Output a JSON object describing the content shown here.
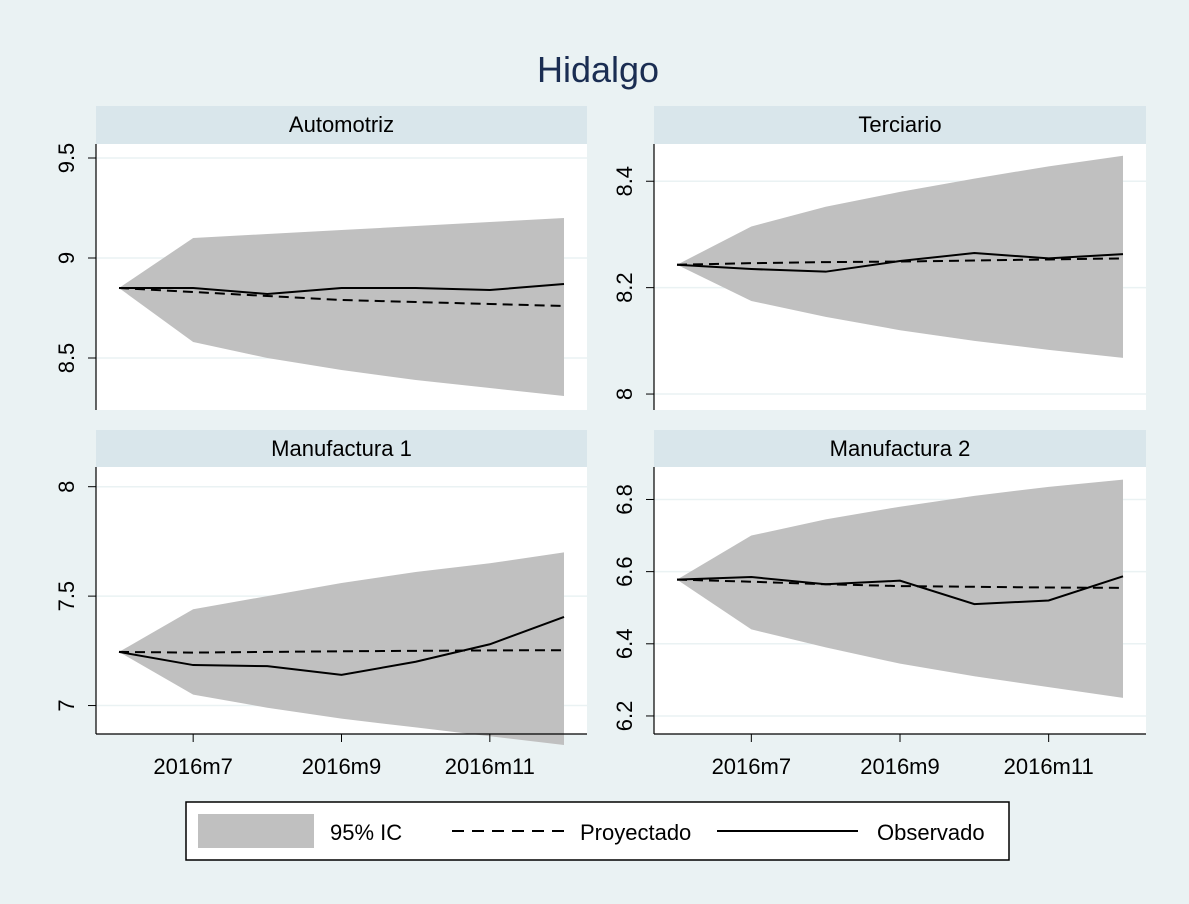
{
  "title": "Hidalgo",
  "colors": {
    "background": "#eaf2f3",
    "plot_bg": "#ffffff",
    "strip": "#d9e6eb",
    "ci_fill": "#c0c0c0",
    "line": "#000000",
    "title": "#1a2d52",
    "grid": "#eaf2f3",
    "legend_bg": "#ffffff"
  },
  "legend": {
    "placement": "bottom",
    "items": [
      {
        "key": "ci",
        "label": "95% IC"
      },
      {
        "key": "proj",
        "label": "Proyectado"
      },
      {
        "key": "obs",
        "label": "Observado"
      }
    ]
  },
  "chart_data": [
    {
      "type": "line",
      "title": "Automotriz",
      "x": [
        "2016m6",
        "2016m7",
        "2016m8",
        "2016m9",
        "2016m10",
        "2016m11",
        "2016m12"
      ],
      "x_ticks": [
        "2016m7",
        "2016m9",
        "2016m11"
      ],
      "y_ticks": [
        "8.5",
        "9",
        "9.5"
      ],
      "ylim": [
        8.24,
        9.57
      ],
      "grid": true,
      "series": [
        {
          "name": "Observado",
          "style": "solid",
          "values": [
            8.85,
            8.85,
            8.82,
            8.85,
            8.85,
            8.84,
            8.87
          ]
        },
        {
          "name": "Proyectado",
          "style": "dash",
          "values": [
            8.85,
            8.83,
            8.81,
            8.79,
            8.78,
            8.77,
            8.76
          ]
        }
      ],
      "ci": {
        "name": "95% IC",
        "lower": [
          8.85,
          8.58,
          8.5,
          8.44,
          8.39,
          8.35,
          8.31
        ],
        "upper": [
          8.85,
          9.1,
          9.12,
          9.14,
          9.16,
          9.18,
          9.2
        ]
      }
    },
    {
      "type": "line",
      "title": "Terciario",
      "x": [
        "2016m6",
        "2016m7",
        "2016m8",
        "2016m9",
        "2016m10",
        "2016m11",
        "2016m12"
      ],
      "x_ticks": [
        "2016m7",
        "2016m9",
        "2016m11"
      ],
      "y_ticks": [
        "8",
        "8.2",
        "8.4"
      ],
      "ylim": [
        7.97,
        8.47
      ],
      "grid": true,
      "series": [
        {
          "name": "Observado",
          "style": "solid",
          "values": [
            8.243,
            8.235,
            8.23,
            8.25,
            8.265,
            8.255,
            8.263
          ]
        },
        {
          "name": "Proyectado",
          "style": "dash",
          "values": [
            8.243,
            8.246,
            8.248,
            8.249,
            8.251,
            8.253,
            8.255
          ]
        }
      ],
      "ci": {
        "name": "95% IC",
        "lower": [
          8.243,
          8.175,
          8.145,
          8.12,
          8.1,
          8.083,
          8.068
        ],
        "upper": [
          8.243,
          8.315,
          8.352,
          8.38,
          8.405,
          8.428,
          8.448
        ]
      }
    },
    {
      "type": "line",
      "title": "Manufactura 1",
      "x": [
        "2016m6",
        "2016m7",
        "2016m8",
        "2016m9",
        "2016m10",
        "2016m11",
        "2016m12"
      ],
      "x_ticks": [
        "2016m7",
        "2016m9",
        "2016m11"
      ],
      "y_ticks": [
        "7",
        "7.5",
        "8"
      ],
      "ylim": [
        6.87,
        8.09
      ],
      "grid": true,
      "series": [
        {
          "name": "Observado",
          "style": "solid",
          "values": [
            7.245,
            7.185,
            7.18,
            7.14,
            7.2,
            7.28,
            7.405
          ]
        },
        {
          "name": "Proyectado",
          "style": "dash",
          "values": [
            7.245,
            7.242,
            7.245,
            7.248,
            7.25,
            7.252,
            7.253
          ]
        }
      ],
      "ci": {
        "name": "95% IC",
        "lower": [
          7.245,
          7.05,
          6.99,
          6.94,
          6.9,
          6.86,
          6.82
        ],
        "upper": [
          7.245,
          7.44,
          7.5,
          7.56,
          7.61,
          7.65,
          7.7
        ]
      }
    },
    {
      "type": "line",
      "title": "Manufactura 2",
      "x": [
        "2016m6",
        "2016m7",
        "2016m8",
        "2016m9",
        "2016m10",
        "2016m11",
        "2016m12"
      ],
      "x_ticks": [
        "2016m7",
        "2016m9",
        "2016m11"
      ],
      "y_ticks": [
        "6.2",
        "6.4",
        "6.6",
        "6.8"
      ],
      "ylim": [
        6.15,
        6.89
      ],
      "grid": true,
      "series": [
        {
          "name": "Observado",
          "style": "solid",
          "values": [
            6.578,
            6.585,
            6.565,
            6.575,
            6.51,
            6.52,
            6.587
          ]
        },
        {
          "name": "Proyectado",
          "style": "dash",
          "values": [
            6.578,
            6.572,
            6.565,
            6.56,
            6.558,
            6.556,
            6.555
          ]
        }
      ],
      "ci": {
        "name": "95% IC",
        "lower": [
          6.578,
          6.44,
          6.39,
          6.345,
          6.31,
          6.28,
          6.25
        ],
        "upper": [
          6.578,
          6.7,
          6.745,
          6.78,
          6.81,
          6.835,
          6.855
        ]
      }
    }
  ]
}
